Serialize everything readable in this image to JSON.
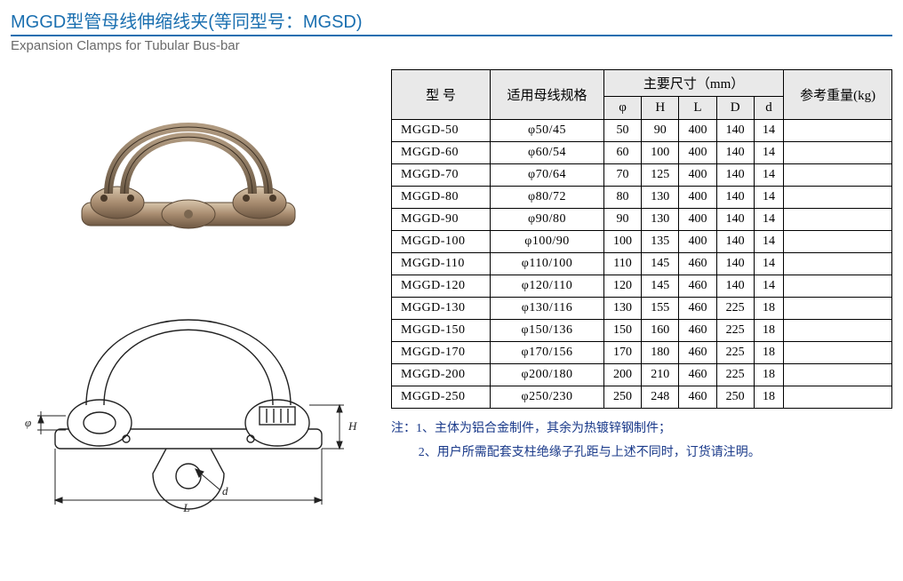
{
  "header": {
    "title_cn": "MGGD型管母线伸缩线夹(等同型号：MGSD)",
    "title_en": "Expansion Clamps for Tubular Bus-bar",
    "title_color": "#1a6fb0",
    "rule_color": "#1a6fb0",
    "subtitle_color": "#6a6a6a"
  },
  "table": {
    "header_bg": "#e9e9e9",
    "border_color": "#000000",
    "col_model": "型  号",
    "col_spec": "适用母线规格",
    "col_dims_group": "主要尺寸（mm）",
    "col_phi": "φ",
    "col_H": "H",
    "col_L": "L",
    "col_D": "D",
    "col_d": "d",
    "col_weight": "参考重量(kg)",
    "rows": [
      {
        "model": "MGGD-50",
        "spec": "φ50/45",
        "phi": "50",
        "H": "90",
        "L": "400",
        "D": "140",
        "d": "14",
        "w": ""
      },
      {
        "model": "MGGD-60",
        "spec": "φ60/54",
        "phi": "60",
        "H": "100",
        "L": "400",
        "D": "140",
        "d": "14",
        "w": ""
      },
      {
        "model": "MGGD-70",
        "spec": "φ70/64",
        "phi": "70",
        "H": "125",
        "L": "400",
        "D": "140",
        "d": "14",
        "w": ""
      },
      {
        "model": "MGGD-80",
        "spec": "φ80/72",
        "phi": "80",
        "H": "130",
        "L": "400",
        "D": "140",
        "d": "14",
        "w": ""
      },
      {
        "model": "MGGD-90",
        "spec": "φ90/80",
        "phi": "90",
        "H": "130",
        "L": "400",
        "D": "140",
        "d": "14",
        "w": ""
      },
      {
        "model": "MGGD-100",
        "spec": "φ100/90",
        "phi": "100",
        "H": "135",
        "L": "400",
        "D": "140",
        "d": "14",
        "w": ""
      },
      {
        "model": "MGGD-110",
        "spec": "φ110/100",
        "phi": "110",
        "H": "145",
        "L": "460",
        "D": "140",
        "d": "14",
        "w": ""
      },
      {
        "model": "MGGD-120",
        "spec": "φ120/110",
        "phi": "120",
        "H": "145",
        "L": "460",
        "D": "140",
        "d": "14",
        "w": ""
      },
      {
        "model": "MGGD-130",
        "spec": "φ130/116",
        "phi": "130",
        "H": "155",
        "L": "460",
        "D": "225",
        "d": "18",
        "w": ""
      },
      {
        "model": "MGGD-150",
        "spec": "φ150/136",
        "phi": "150",
        "H": "160",
        "L": "460",
        "D": "225",
        "d": "18",
        "w": ""
      },
      {
        "model": "MGGD-170",
        "spec": "φ170/156",
        "phi": "170",
        "H": "180",
        "L": "460",
        "D": "225",
        "d": "18",
        "w": ""
      },
      {
        "model": "MGGD-200",
        "spec": "φ200/180",
        "phi": "200",
        "H": "210",
        "L": "460",
        "D": "225",
        "d": "18",
        "w": ""
      },
      {
        "model": "MGGD-250",
        "spec": "φ250/230",
        "phi": "250",
        "H": "248",
        "L": "460",
        "D": "250",
        "d": "18",
        "w": ""
      }
    ]
  },
  "notes": {
    "color": "#1a3a8a",
    "prefix": "注：",
    "line1_num": "1、",
    "line1": "主体为铝合金制件，其余为热镀锌钢制件；",
    "line2_num": "2、",
    "line2": "用户所需配套支柱绝缘子孔距与上述不同时，订货请注明。"
  },
  "diagram": {
    "label_phi": "φ",
    "label_H": "H",
    "label_L": "L",
    "label_d": "d",
    "stroke": "#222222",
    "fill_light": "#ffffff"
  },
  "photo": {
    "metal_light": "#c9b49a",
    "metal_mid": "#a88c70",
    "metal_dark": "#6e5843",
    "cable": "#8a7258"
  }
}
